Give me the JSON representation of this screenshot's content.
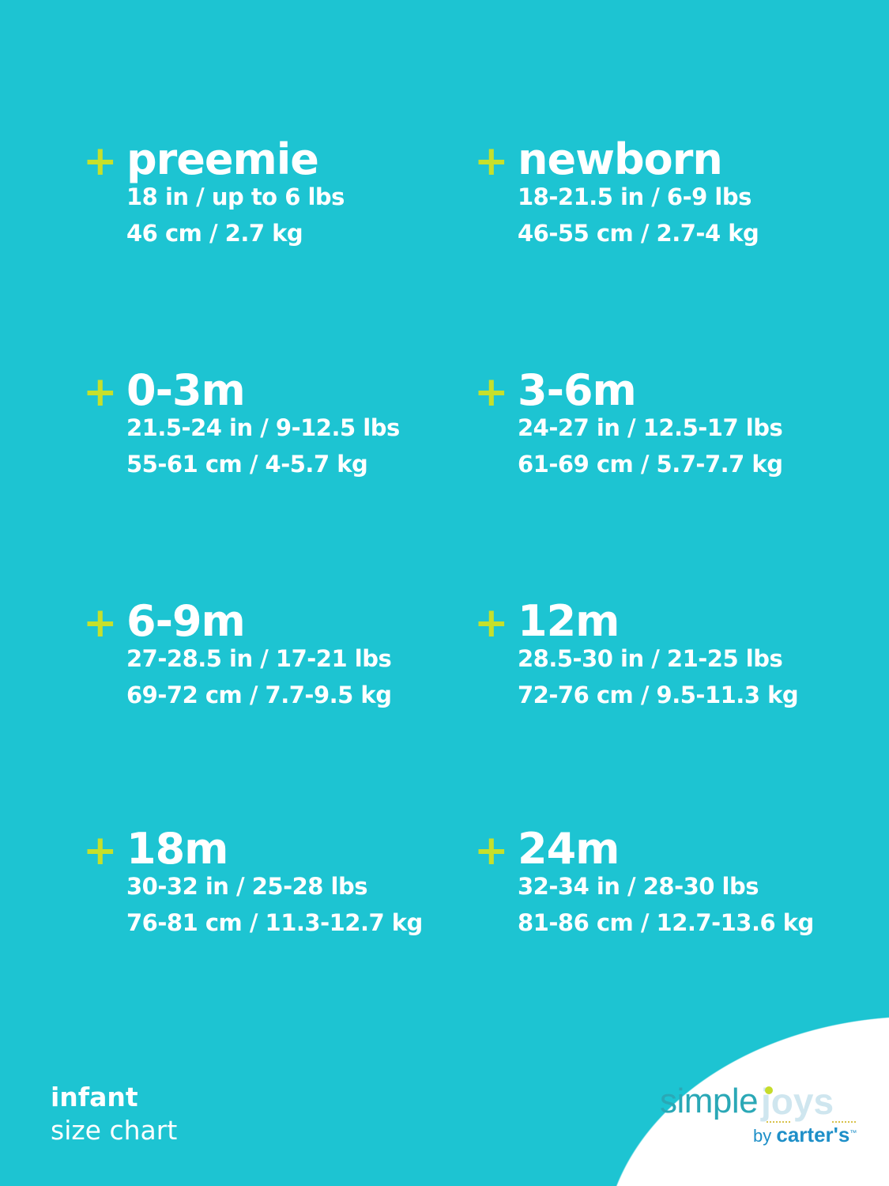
{
  "sizes": [
    {
      "name": "preemie",
      "imperial": "18 in / up to 6 lbs",
      "metric": "46 cm / 2.7 kg"
    },
    {
      "name": "newborn",
      "imperial": "18-21.5 in / 6-9 lbs",
      "metric": "46-55 cm / 2.7-4 kg"
    },
    {
      "name": "0-3m",
      "imperial": "21.5-24 in / 9-12.5 lbs",
      "metric": "55-61 cm / 4-5.7 kg"
    },
    {
      "name": "3-6m",
      "imperial": "24-27 in / 12.5-17 lbs",
      "metric": "61-69 cm / 5.7-7.7 kg"
    },
    {
      "name": "6-9m",
      "imperial": "27-28.5 in / 17-21 lbs",
      "metric": "69-72 cm / 7.7-9.5 kg"
    },
    {
      "name": "12m",
      "imperial": "28.5-30 in / 21-25 lbs",
      "metric": "72-76 cm / 9.5-11.3 kg"
    },
    {
      "name": "18m",
      "imperial": "30-32 in / 25-28 lbs",
      "metric": "76-81 cm / 11.3-12.7 kg"
    },
    {
      "name": "24m",
      "imperial": "32-34 in / 28-30 lbs",
      "metric": "81-86 cm / 12.7-13.6 kg"
    }
  ],
  "plus_symbol": "+",
  "footer": {
    "line1": "infant",
    "line2": "size chart"
  },
  "logo": {
    "word1": "simple",
    "word2": "joys",
    "by": "by",
    "brand": "carter's",
    "tm": "™"
  },
  "colors": {
    "background": "#1dc4d2",
    "accent": "#c6e02b",
    "text": "#ffffff"
  }
}
